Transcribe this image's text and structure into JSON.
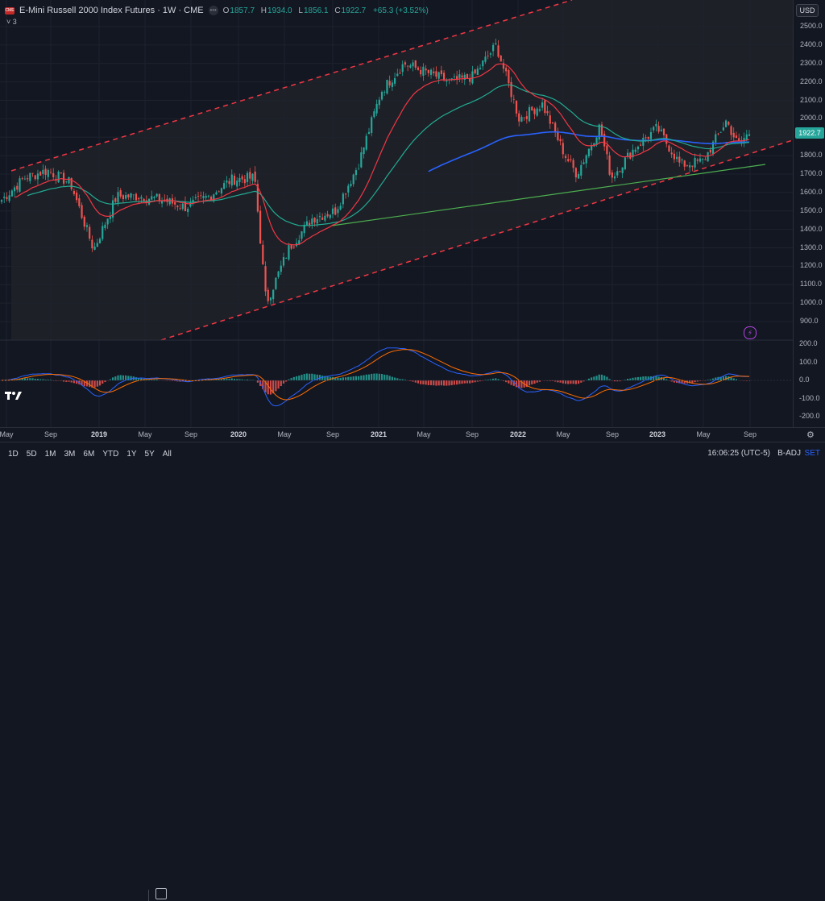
{
  "legend": {
    "symbol_icon": "CME-logo-icon",
    "title": "E-Mini Russell 2000 Index Futures · 1W · CME",
    "open_label": "O",
    "open": "1857.7",
    "high_label": "H",
    "high": "1934.0",
    "low_label": "L",
    "low": "1856.1",
    "close_label": "C",
    "close": "1922.7",
    "change": "+65.3 (+3.52%)",
    "indicator_count": "˅ 3"
  },
  "currency": "USD",
  "last_price": "1922.7",
  "price_axis": {
    "labels": [
      "2500.0",
      "2400.0",
      "2300.0",
      "2200.0",
      "2100.0",
      "2000.0",
      "1900.0",
      "1800.0",
      "1700.0",
      "1600.0",
      "1500.0",
      "1400.0",
      "1300.0",
      "1200.0",
      "1100.0",
      "1000.0",
      "900.0"
    ]
  },
  "macd_axis": {
    "labels": [
      "200.0",
      "100.0",
      "0.0",
      "-100.0",
      "-200.0"
    ]
  },
  "time_axis": {
    "labels": [
      {
        "text": "May",
        "year": false
      },
      {
        "text": "Sep",
        "year": false
      },
      {
        "text": "2019",
        "year": true
      },
      {
        "text": "May",
        "year": false
      },
      {
        "text": "Sep",
        "year": false
      },
      {
        "text": "2020",
        "year": true
      },
      {
        "text": "May",
        "year": false
      },
      {
        "text": "Sep",
        "year": false
      },
      {
        "text": "2021",
        "year": true
      },
      {
        "text": "May",
        "year": false
      },
      {
        "text": "Sep",
        "year": false
      },
      {
        "text": "2022",
        "year": true
      },
      {
        "text": "May",
        "year": false
      },
      {
        "text": "Sep",
        "year": false
      },
      {
        "text": "2023",
        "year": true
      },
      {
        "text": "May",
        "year": false
      },
      {
        "text": "Sep",
        "year": false
      }
    ]
  },
  "range_buttons": [
    "1D",
    "5D",
    "1M",
    "3M",
    "6M",
    "YTD",
    "1Y",
    "5Y",
    "All"
  ],
  "clock": "16:06:25 (UTC-5)",
  "adjust": "B-ADJ",
  "settings_label": "SET",
  "colors": {
    "up": "#26a69a",
    "down": "#ef5350",
    "ema_fast": "#f23645",
    "ema_mid": "#22ab94",
    "ema_slow": "#2962ff",
    "trendline": "#4caf50",
    "channel": "#f23645",
    "macd": "#2962ff",
    "signal": "#ff6d00"
  },
  "chart_data": {
    "type": "candlestick",
    "timeframe": "1W",
    "symbol": "E-Mini Russell 2000 Index Futures",
    "ylim": [
      880,
      2550
    ],
    "keypoints": [
      {
        "t": "2018-04",
        "close": 1560
      },
      {
        "t": "2018-06",
        "close": 1680
      },
      {
        "t": "2018-08",
        "close": 1720
      },
      {
        "t": "2018-10",
        "close": 1650
      },
      {
        "t": "2018-12",
        "close": 1290
      },
      {
        "t": "2019-02",
        "close": 1580
      },
      {
        "t": "2019-04",
        "close": 1580
      },
      {
        "t": "2019-06",
        "close": 1560
      },
      {
        "t": "2019-08",
        "close": 1520
      },
      {
        "t": "2019-10",
        "close": 1580
      },
      {
        "t": "2019-12",
        "close": 1670
      },
      {
        "t": "2020-02",
        "close": 1680
      },
      {
        "t": "2020-03",
        "close": 1000
      },
      {
        "t": "2020-05",
        "close": 1300
      },
      {
        "t": "2020-07",
        "close": 1460
      },
      {
        "t": "2020-09",
        "close": 1500
      },
      {
        "t": "2020-11",
        "close": 1750
      },
      {
        "t": "2021-01",
        "close": 2150
      },
      {
        "t": "2021-03",
        "close": 2300
      },
      {
        "t": "2021-05",
        "close": 2250
      },
      {
        "t": "2021-07",
        "close": 2200
      },
      {
        "t": "2021-09",
        "close": 2230
      },
      {
        "t": "2021-11",
        "close": 2400
      },
      {
        "t": "2022-01",
        "close": 2000
      },
      {
        "t": "2022-03",
        "close": 2080
      },
      {
        "t": "2022-05",
        "close": 1800
      },
      {
        "t": "2022-06",
        "close": 1700
      },
      {
        "t": "2022-08",
        "close": 1960
      },
      {
        "t": "2022-09",
        "close": 1680
      },
      {
        "t": "2022-11",
        "close": 1840
      },
      {
        "t": "2023-01",
        "close": 1950
      },
      {
        "t": "2023-03",
        "close": 1750
      },
      {
        "t": "2023-05",
        "close": 1770
      },
      {
        "t": "2023-07",
        "close": 1990
      },
      {
        "t": "2023-08",
        "close": 1860
      },
      {
        "t": "2023-09",
        "close": 1922.7
      }
    ]
  }
}
